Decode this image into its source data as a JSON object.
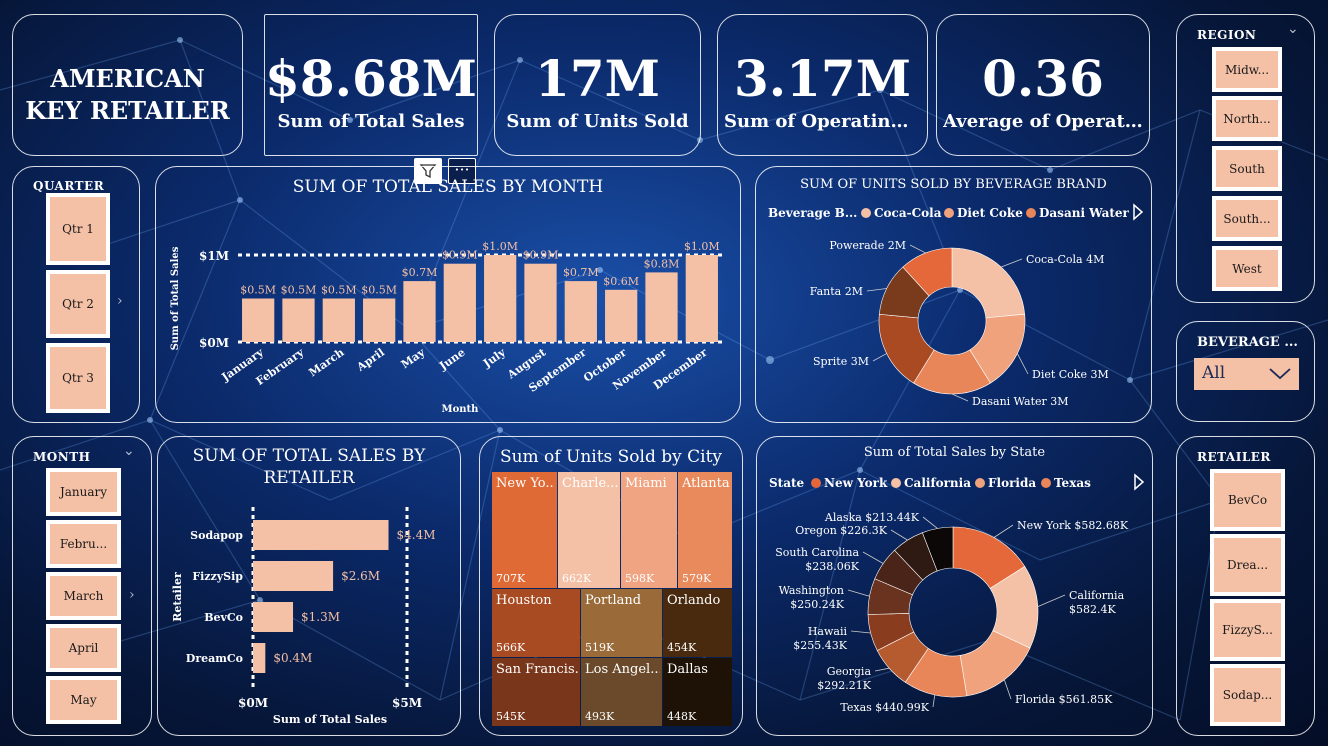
{
  "app_title": "AMERICAN KEY RETAILER",
  "kpis": [
    {
      "value": "$8.68M",
      "label": "Sum of Total Sales"
    },
    {
      "value": "17M",
      "label": "Sum of Units Sold"
    },
    {
      "value": "3.17M",
      "label": "Sum of Operating ..."
    },
    {
      "value": "0.36",
      "label": "Average of Operati..."
    }
  ],
  "slicers": {
    "quarter": {
      "title": "QUARTER",
      "items": [
        "Qtr 1",
        "Qtr 2",
        "Qtr 3"
      ]
    },
    "month": {
      "title": "MONTH",
      "items": [
        "January",
        "Febru...",
        "March",
        "April",
        "May"
      ]
    },
    "region": {
      "title": "REGION",
      "items": [
        "Midw...",
        "North...",
        "South",
        "South...",
        "West"
      ]
    },
    "beverage": {
      "title": "BEVERAGE ...",
      "value": "All"
    },
    "retailer": {
      "title": "RETAILER",
      "items": [
        "BevCo",
        "Drea...",
        "FizzyS...",
        "Sodap..."
      ]
    }
  },
  "colors": {
    "bar": "#f4c0a6",
    "accent": "#e4683a"
  },
  "chart_data": [
    {
      "id": "sales_by_month",
      "type": "bar",
      "title": "SUM OF TOTAL SALES BY MONTH",
      "xlabel": "Month",
      "ylabel": "Sum of Total Sales",
      "categories": [
        "January",
        "February",
        "March",
        "April",
        "May",
        "June",
        "July",
        "August",
        "September",
        "October",
        "November",
        "December"
      ],
      "values": [
        0.5,
        0.5,
        0.5,
        0.5,
        0.7,
        0.9,
        1.0,
        0.9,
        0.7,
        0.6,
        0.8,
        1.0
      ],
      "data_labels": [
        "$0.5M",
        "$0.5M",
        "$0.5M",
        "$0.5M",
        "$0.7M",
        "$0.9M",
        "$1.0M",
        "$0.9M",
        "$0.7M",
        "$0.6M",
        "$0.8M",
        "$1.0M"
      ],
      "ticks": [
        "$0M",
        "$1M"
      ],
      "ylim": [
        0,
        1.0
      ]
    },
    {
      "id": "units_by_brand",
      "type": "pie",
      "title": "SUM OF UNITS SOLD BY BEVERAGE BRAND",
      "legend_title": "Beverage B...",
      "legend": [
        "Coca-Cola",
        "Diet Coke",
        "Dasani Water"
      ],
      "categories": [
        "Coca-Cola",
        "Diet Coke",
        "Dasani Water",
        "Sprite",
        "Fanta",
        "Powerade"
      ],
      "values": [
        4,
        3,
        3,
        3,
        2,
        2
      ],
      "labels": [
        "Coca-Cola 4M",
        "Diet Coke 3M",
        "Dasani Water 3M",
        "Sprite 3M",
        "Fanta 2M",
        "Powerade 2M"
      ],
      "colors": [
        "#f4c0a6",
        "#f0a27c",
        "#e8865a",
        "#a94a22",
        "#7a3a1c",
        "#e4683a"
      ]
    },
    {
      "id": "sales_by_retailer",
      "type": "bar",
      "orientation": "horizontal",
      "title": "SUM OF TOTAL SALES BY RETAILER",
      "xlabel": "Sum of Total Sales",
      "ylabel": "Retailer",
      "categories": [
        "Sodapop",
        "FizzySip",
        "BevCo",
        "DreamCo"
      ],
      "values": [
        4.4,
        2.6,
        1.3,
        0.4
      ],
      "data_labels": [
        "$4.4M",
        "$2.6M",
        "$1.3M",
        "$0.4M"
      ],
      "ticks": [
        "$0M",
        "$5M"
      ],
      "xlim": [
        0,
        5
      ]
    },
    {
      "id": "units_by_city",
      "type": "treemap",
      "title": "Sum of Units Sold by City",
      "cells": [
        {
          "name": "New Yo...",
          "value": "707K",
          "color": "#e06a35"
        },
        {
          "name": "Charle...",
          "value": "662K",
          "color": "#f4c0a6"
        },
        {
          "name": "Miami",
          "value": "598K",
          "color": "#f0a482"
        },
        {
          "name": "Atlanta",
          "value": "579K",
          "color": "#e98a5c"
        },
        {
          "name": "Houston",
          "value": "566K",
          "color": "#a84a22"
        },
        {
          "name": "Portland",
          "value": "519K",
          "color": "#9a6a38"
        },
        {
          "name": "Orlando",
          "value": "454K",
          "color": "#4a2a0e"
        },
        {
          "name": "San Francis...",
          "value": "545K",
          "color": "#7a361a"
        },
        {
          "name": "Los Angel...",
          "value": "493K",
          "color": "#6a4a2a"
        },
        {
          "name": "Dallas",
          "value": "448K",
          "color": "#1e1206"
        }
      ]
    },
    {
      "id": "sales_by_state",
      "type": "pie",
      "title": "Sum of Total Sales by State",
      "legend_title": "State",
      "legend": [
        "New York",
        "California",
        "Florida",
        "Texas"
      ],
      "categories": [
        "New York",
        "California",
        "Florida",
        "Texas",
        "Georgia",
        "Hawaii",
        "Washington",
        "South Carolina",
        "Oregon",
        "Alaska"
      ],
      "values": [
        582.68,
        582.4,
        561.85,
        440.99,
        292.21,
        255.43,
        250.24,
        238.06,
        226.3,
        213.44
      ],
      "labels": [
        "New York $582.68K",
        "California $582.4K",
        "Florida $561.85K",
        "Texas $440.99K",
        "Georgia $292.21K",
        "Hawaii $255.43K",
        "Washington $250.24K",
        "South Carolina $238.06K",
        "Oregon $226.3K",
        "Alaska $213.44K"
      ],
      "colors": [
        "#e4683a",
        "#f4c0a6",
        "#f0a27c",
        "#e8865a",
        "#b65a30",
        "#8a3c1e",
        "#6a3320",
        "#4a2418",
        "#2e1a12",
        "#0c0808"
      ]
    }
  ]
}
